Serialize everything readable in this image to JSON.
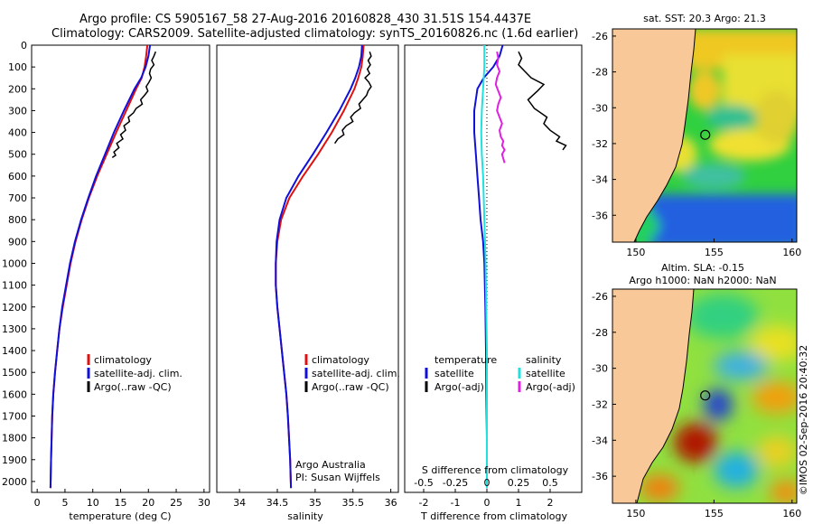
{
  "title": {
    "line1": "Argo profile: CS 5905167_58 27-Aug-2016 20160828_430 31.51S 154.4437E",
    "line2": "Climatology: CARS2009. Satellite-adjusted climatology: synTS_20160826.nc (1.6d earlier)"
  },
  "credit": {
    "line1": "Argo Australia",
    "line2": "PI: Susan Wijffels"
  },
  "stamp": "©IMOS 02-Sep-2016 20:40:32",
  "colors": {
    "climatology": "#e01010",
    "satellite": "#1010d8",
    "argo": "#000000",
    "sal_satellite": "#20e0e0",
    "sal_argo": "#e020e0",
    "land": "#f8c898"
  },
  "chart_data": [
    {
      "type": "line",
      "id": "temperature",
      "xlabel": "temperature (deg C)",
      "ylabel": "",
      "xlim": [
        -1,
        31
      ],
      "ylim": [
        2050,
        0
      ],
      "xticks": [
        0,
        5,
        10,
        15,
        20,
        25,
        30
      ],
      "yticks": [
        0,
        100,
        200,
        300,
        400,
        500,
        600,
        700,
        800,
        900,
        1000,
        1100,
        1200,
        1300,
        1400,
        1500,
        1600,
        1700,
        1800,
        1900,
        2000
      ],
      "legend": [
        "climatology",
        "satellite-adj. clim.",
        "Argo(..raw -QC)"
      ],
      "series": [
        {
          "name": "climatology",
          "x": [
            19.8,
            19.6,
            19.3,
            18.8,
            17.8,
            16.0,
            14.2,
            12.5,
            10.8,
            9.3,
            8.0,
            6.9,
            6.0,
            5.3,
            4.6,
            4.0,
            3.6,
            3.2,
            2.9,
            2.7,
            2.5,
            2.4
          ],
          "y": [
            0,
            50,
            100,
            150,
            200,
            300,
            400,
            500,
            600,
            700,
            800,
            900,
            1000,
            1100,
            1200,
            1300,
            1400,
            1500,
            1600,
            1700,
            1900,
            2030
          ]
        },
        {
          "name": "satellite-adj. clim.",
          "x": [
            20.3,
            20.0,
            19.5,
            18.7,
            17.5,
            15.6,
            13.8,
            12.2,
            10.6,
            9.2,
            7.9,
            6.8,
            5.9,
            5.2,
            4.5,
            4.0,
            3.6,
            3.2,
            2.9,
            2.7,
            2.5,
            2.4
          ],
          "y": [
            0,
            50,
            100,
            150,
            200,
            300,
            400,
            500,
            600,
            700,
            800,
            900,
            1000,
            1100,
            1200,
            1300,
            1400,
            1500,
            1600,
            1700,
            1900,
            2030
          ]
        },
        {
          "name": "Argo(..raw -QC)",
          "x": [
            21.3,
            21.0,
            20.6,
            21.0,
            20.4,
            20.2,
            20.5,
            20.1,
            19.6,
            19.9,
            19.3,
            18.6,
            18.9,
            17.8,
            17.3,
            16.4,
            16.6,
            15.6,
            15.9,
            15.0,
            15.4,
            14.3,
            14.7,
            13.8,
            14.1,
            13.5
          ],
          "y": [
            30,
            50,
            70,
            90,
            110,
            130,
            150,
            170,
            190,
            210,
            230,
            250,
            270,
            290,
            310,
            330,
            350,
            370,
            390,
            410,
            430,
            450,
            470,
            490,
            505,
            515
          ]
        }
      ]
    },
    {
      "type": "line",
      "id": "salinity",
      "xlabel": "salinity",
      "ylabel": "",
      "xlim": [
        33.7,
        36.1
      ],
      "ylim": [
        2050,
        0
      ],
      "xticks": [
        34,
        34.5,
        35,
        35.5,
        36
      ],
      "legend": [
        "climatology",
        "satellite-adj. clim.",
        "Argo(..raw -QC)"
      ],
      "series": [
        {
          "name": "climatology",
          "x": [
            35.64,
            35.63,
            35.61,
            35.57,
            35.52,
            35.38,
            35.22,
            35.04,
            34.84,
            34.66,
            34.55,
            34.5,
            34.48,
            34.48,
            34.5,
            34.53,
            34.56,
            34.59,
            34.62,
            34.64,
            34.67,
            34.68
          ],
          "y": [
            0,
            50,
            100,
            150,
            200,
            300,
            400,
            500,
            600,
            700,
            800,
            900,
            1000,
            1100,
            1200,
            1300,
            1400,
            1500,
            1600,
            1700,
            1900,
            2030
          ]
        },
        {
          "name": "satellite-adj. clim.",
          "x": [
            35.62,
            35.61,
            35.58,
            35.53,
            35.47,
            35.32,
            35.15,
            34.97,
            34.78,
            34.62,
            34.53,
            34.49,
            34.48,
            34.48,
            34.5,
            34.53,
            34.56,
            34.59,
            34.62,
            34.64,
            34.67,
            34.68
          ],
          "y": [
            0,
            50,
            100,
            150,
            200,
            300,
            400,
            500,
            600,
            700,
            800,
            900,
            1000,
            1100,
            1200,
            1300,
            1400,
            1500,
            1600,
            1700,
            1900,
            2030
          ]
        },
        {
          "name": "Argo(..raw -QC)",
          "x": [
            35.72,
            35.74,
            35.7,
            35.73,
            35.69,
            35.72,
            35.66,
            35.71,
            35.74,
            35.7,
            35.68,
            35.63,
            35.58,
            35.6,
            35.52,
            35.47,
            35.5,
            35.41,
            35.36,
            35.38,
            35.3,
            35.26
          ],
          "y": [
            30,
            50,
            70,
            90,
            110,
            130,
            150,
            170,
            190,
            210,
            230,
            250,
            270,
            290,
            310,
            330,
            350,
            370,
            390,
            410,
            430,
            450
          ]
        }
      ]
    },
    {
      "type": "line",
      "id": "difference",
      "xlabel": "T difference from climatology",
      "xlabel_top": "S difference from climatology",
      "ylabel": "",
      "xlim": [
        -2.6,
        3.0
      ],
      "ylim": [
        2050,
        0
      ],
      "xticks": [
        -2,
        -1,
        0,
        1,
        2
      ],
      "xticks_top": [
        -0.5,
        -0.25,
        0,
        0.25,
        0.5
      ],
      "legend": {
        "temperature": [
          "temperature",
          "satellite",
          "Argo(-adj)"
        ],
        "salinity": [
          "salinity",
          "satellite",
          "Argo(-adj)"
        ]
      },
      "series": [
        {
          "name": "temperature satellite",
          "x": [
            0.5,
            0.4,
            0.2,
            -0.1,
            -0.3,
            -0.4,
            -0.4,
            -0.35,
            -0.3,
            -0.25,
            -0.2,
            -0.12,
            -0.08,
            -0.05,
            -0.03,
            -0.02,
            0.0,
            0.0
          ],
          "y": [
            0,
            50,
            100,
            150,
            200,
            300,
            400,
            500,
            600,
            700,
            800,
            900,
            1000,
            1200,
            1400,
            1600,
            1800,
            2030
          ]
        },
        {
          "name": "temperature Argo(-adj)",
          "x": [
            1.0,
            1.1,
            1.0,
            1.2,
            1.4,
            1.8,
            1.6,
            1.3,
            1.5,
            1.9,
            1.8,
            2.0,
            2.3,
            2.2,
            2.5,
            2.4
          ],
          "y": [
            30,
            60,
            90,
            120,
            150,
            180,
            210,
            250,
            290,
            330,
            360,
            390,
            420,
            440,
            460,
            480
          ]
        },
        {
          "name": "salinity satellite",
          "x": [
            -0.02,
            -0.02,
            -0.03,
            -0.04,
            -0.045,
            -0.04,
            -0.03,
            -0.025,
            -0.02,
            -0.015,
            -0.01,
            -0.005,
            0.0,
            0.0,
            0.0,
            0.0
          ],
          "y": [
            0,
            100,
            200,
            300,
            400,
            500,
            600,
            700,
            800,
            900,
            1000,
            1200,
            1400,
            1600,
            1800,
            2030
          ]
        },
        {
          "name": "salinity Argo(-adj)",
          "x": [
            0.08,
            0.09,
            0.08,
            0.1,
            0.08,
            0.07,
            0.09,
            0.11,
            0.09,
            0.08,
            0.1,
            0.12,
            0.1,
            0.11,
            0.13,
            0.12,
            0.14,
            0.12,
            0.13,
            0.14
          ],
          "y": [
            30,
            60,
            90,
            120,
            150,
            180,
            210,
            240,
            270,
            300,
            330,
            360,
            390,
            420,
            440,
            460,
            480,
            500,
            520,
            540
          ]
        }
      ]
    },
    {
      "type": "heatmap",
      "id": "sst-map",
      "title": "sat. SST: 20.3 Argo: 21.3",
      "xlim": [
        148.5,
        160.3
      ],
      "ylim": [
        -37.5,
        -25.6
      ],
      "xticks": [
        150,
        155,
        160
      ],
      "yticks": [
        -26,
        -28,
        -30,
        -32,
        -34,
        -36
      ],
      "profile_location": {
        "lon": 154.44,
        "lat": -31.51
      }
    },
    {
      "type": "heatmap",
      "id": "sla-map",
      "title": "Altim. SLA: -0.15",
      "subtitle": "Argo h1000: NaN h2000: NaN",
      "xlim": [
        148.5,
        160.3
      ],
      "ylim": [
        -37.5,
        -25.6
      ],
      "xticks": [
        150,
        155,
        160
      ],
      "yticks": [
        -26,
        -28,
        -30,
        -32,
        -34,
        -36
      ],
      "profile_location": {
        "lon": 154.44,
        "lat": -31.51
      }
    }
  ]
}
